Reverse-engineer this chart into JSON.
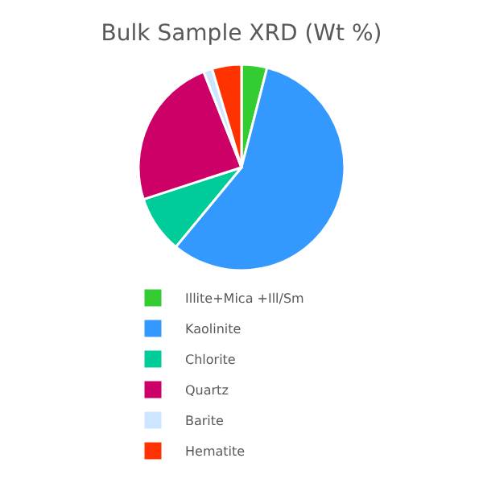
{
  "chart_data": {
    "type": "pie",
    "title": "Bulk Sample XRD (Wt %)",
    "categories": [
      "Illite+Mica +Ill/Sm",
      "Kaolinite",
      "Chlorite",
      "Quartz",
      "Barite",
      "Hematite"
    ],
    "values": [
      4,
      57,
      9,
      24,
      1.4,
      4.6
    ],
    "colors": [
      "#33cc33",
      "#3399ff",
      "#00cc99",
      "#cc0066",
      "#cce6ff",
      "#ff3300"
    ],
    "legend": "bottom"
  }
}
